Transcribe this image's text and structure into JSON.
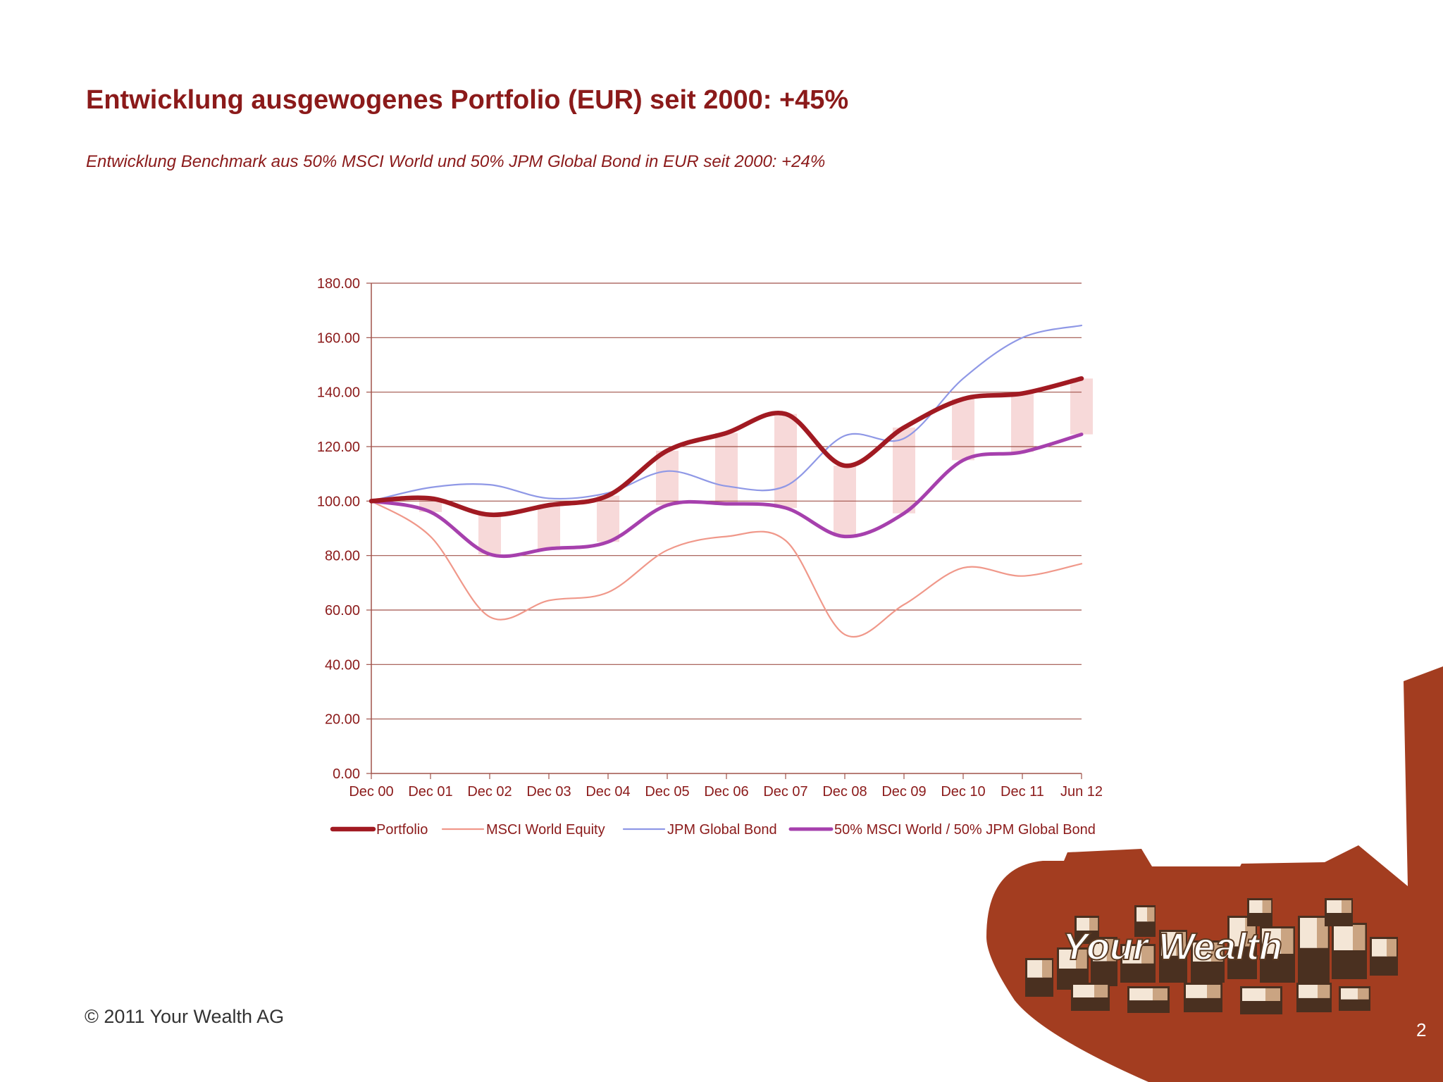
{
  "title": "Entwicklung ausgewogenes Portfolio (EUR) seit 2000: +45%",
  "subtitle": "Entwicklung Benchmark aus 50% MSCI World und 50% JPM Global Bond in EUR seit 2000: +24%",
  "footer": "© 2011 Your Wealth AG",
  "page_number": "2",
  "logo_text": "Your Wealth",
  "colors": {
    "brand": "#8b1a1a",
    "brand_shape": "#a33d20",
    "portfolio": "#a11a22",
    "msci": "#f0988a",
    "jpm": "#8f98e6",
    "benchmark": "#a640ad",
    "band": "#f7d9d9",
    "grid": "#a0524a"
  },
  "chart_data": {
    "type": "line",
    "categories": [
      "Dec 00",
      "Dec 01",
      "Dec 02",
      "Dec 03",
      "Dec 04",
      "Dec 05",
      "Dec 06",
      "Dec 07",
      "Dec 08",
      "Dec 09",
      "Dec 10",
      "Dec 11",
      "Jun 12"
    ],
    "ylim": [
      0,
      180
    ],
    "yticks": [
      "0.00",
      "20.00",
      "40.00",
      "60.00",
      "80.00",
      "100.00",
      "120.00",
      "140.00",
      "160.00",
      "180.00"
    ],
    "grid": true,
    "legend_position": "bottom",
    "band_between": [
      "Portfolio",
      "50% MSCI World / 50% JPM Global Bond"
    ],
    "series": [
      {
        "name": "Portfolio",
        "values": [
          100,
          101,
          95,
          98.5,
          102,
          118.5,
          125,
          132,
          113,
          127,
          137.5,
          139.5,
          145
        ]
      },
      {
        "name": "MSCI World Equity",
        "values": [
          100,
          87,
          57.5,
          63.5,
          66.5,
          82,
          87,
          85.5,
          51,
          62,
          75.5,
          72.5,
          77
        ]
      },
      {
        "name": "JPM Global Bond",
        "values": [
          100,
          105,
          106,
          101,
          103,
          111,
          105.5,
          105.5,
          124,
          123,
          145,
          160,
          164.5
        ]
      },
      {
        "name": "50% MSCI World / 50% JPM Global Bond",
        "values": [
          100,
          96,
          80.5,
          82.5,
          85,
          98.5,
          99,
          97.5,
          87,
          95.5,
          115,
          118,
          124.5
        ]
      }
    ]
  }
}
